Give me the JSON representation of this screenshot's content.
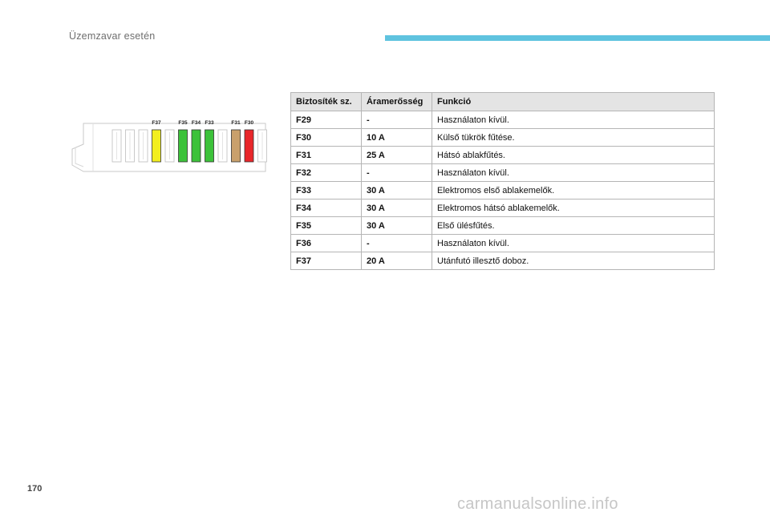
{
  "header": {
    "title": "Üzemzavar esetén"
  },
  "page_number": "170",
  "watermark": "carmanualsonline.info",
  "diagram": {
    "labels": [
      "F37",
      "F35",
      "F34",
      "F33",
      "F31",
      "F30"
    ],
    "slots": [
      {
        "color": "#ffffff"
      },
      {
        "color": "#ffffff"
      },
      {
        "color": "#ffffff"
      },
      {
        "color": "#f2ee1f",
        "label": "F37"
      },
      {
        "color": "#ffffff"
      },
      {
        "color": "#3cc23a",
        "label": "F35"
      },
      {
        "color": "#3cc23a",
        "label": "F34"
      },
      {
        "color": "#3cc23a",
        "label": "F33"
      },
      {
        "color": "#ffffff"
      },
      {
        "color": "#c9a06c",
        "label": "F31"
      },
      {
        "color": "#e8262a",
        "label": "F30"
      },
      {
        "color": "#ffffff"
      }
    ]
  },
  "table": {
    "headers": [
      "Biztosíték sz.",
      "Áramerősség",
      "Funkció"
    ],
    "rows": [
      {
        "num": "F29",
        "amp": "-",
        "func": "Használaton kívül."
      },
      {
        "num": "F30",
        "amp": "10 A",
        "func": "Külső tükrök fűtése."
      },
      {
        "num": "F31",
        "amp": "25 A",
        "func": "Hátsó ablakfűtés."
      },
      {
        "num": "F32",
        "amp": "-",
        "func": "Használaton kívül."
      },
      {
        "num": "F33",
        "amp": "30 A",
        "func": "Elektromos első ablakemelők."
      },
      {
        "num": "F34",
        "amp": "30 A",
        "func": "Elektromos hátsó ablakemelők."
      },
      {
        "num": "F35",
        "amp": "30 A",
        "func": "Első ülésfűtés."
      },
      {
        "num": "F36",
        "amp": "-",
        "func": "Használaton kívül."
      },
      {
        "num": "F37",
        "amp": "20 A",
        "func": "Utánfutó illesztő doboz."
      }
    ]
  }
}
